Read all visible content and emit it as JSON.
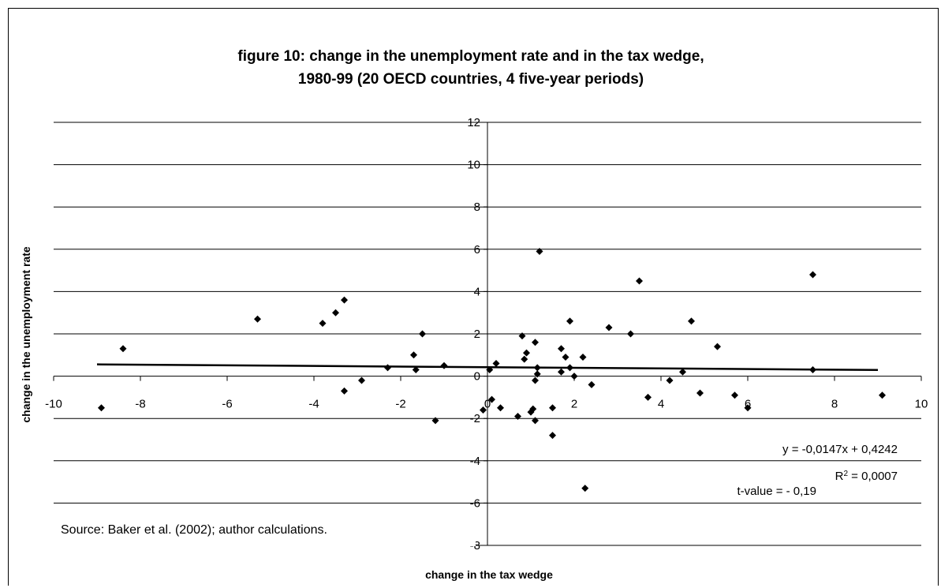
{
  "chart_data": {
    "type": "scatter",
    "title": "figure 10: change in the unemployment rate and in the tax wedge,",
    "subtitle": "1980-99 (20 OECD countries, 4 five-year periods)",
    "xlabel": "change in the tax wedge",
    "ylabel": "change in the unemployment rate",
    "xlim": [
      -10,
      10
    ],
    "ylim": [
      -8,
      12
    ],
    "x_ticks": [
      -10,
      -8,
      -6,
      -4,
      -2,
      0,
      2,
      4,
      6,
      8,
      10
    ],
    "y_ticks": [
      -8,
      -6,
      -4,
      -2,
      0,
      2,
      4,
      6,
      8,
      10,
      12
    ],
    "grid": "horizontal",
    "points": [
      {
        "x": -8.9,
        "y": -1.5
      },
      {
        "x": -8.4,
        "y": 1.3
      },
      {
        "x": -5.3,
        "y": 2.7
      },
      {
        "x": -3.8,
        "y": 2.5
      },
      {
        "x": -3.5,
        "y": 3.0
      },
      {
        "x": -3.3,
        "y": 3.6
      },
      {
        "x": -3.3,
        "y": -0.7
      },
      {
        "x": -2.9,
        "y": -0.2
      },
      {
        "x": -2.3,
        "y": 0.4
      },
      {
        "x": -1.7,
        "y": 1.0
      },
      {
        "x": -1.65,
        "y": 0.3
      },
      {
        "x": -1.5,
        "y": 2.0
      },
      {
        "x": -1.2,
        "y": -2.1
      },
      {
        "x": -1.0,
        "y": 0.5
      },
      {
        "x": -0.1,
        "y": -1.6
      },
      {
        "x": 0.05,
        "y": 0.3
      },
      {
        "x": 0.1,
        "y": -1.1
      },
      {
        "x": 0.2,
        "y": 0.6
      },
      {
        "x": 0.3,
        "y": -1.5
      },
      {
        "x": 0.7,
        "y": -1.9
      },
      {
        "x": 0.8,
        "y": 1.9
      },
      {
        "x": 0.85,
        "y": 0.8
      },
      {
        "x": 0.9,
        "y": 1.1
      },
      {
        "x": 1.0,
        "y": -1.7
      },
      {
        "x": 1.05,
        "y": -1.55
      },
      {
        "x": 1.1,
        "y": 1.6
      },
      {
        "x": 1.1,
        "y": -0.2
      },
      {
        "x": 1.1,
        "y": -2.1
      },
      {
        "x": 1.15,
        "y": 0.1
      },
      {
        "x": 1.15,
        "y": 0.4
      },
      {
        "x": 1.2,
        "y": 5.9
      },
      {
        "x": 1.5,
        "y": -1.5
      },
      {
        "x": 1.5,
        "y": -2.8
      },
      {
        "x": 1.7,
        "y": 1.3
      },
      {
        "x": 1.7,
        "y": 0.2
      },
      {
        "x": 1.8,
        "y": 0.9
      },
      {
        "x": 1.9,
        "y": 2.6
      },
      {
        "x": 1.9,
        "y": 0.4
      },
      {
        "x": 2.0,
        "y": 0.0
      },
      {
        "x": 2.2,
        "y": 0.9
      },
      {
        "x": 2.25,
        "y": -5.3
      },
      {
        "x": 2.4,
        "y": -0.4
      },
      {
        "x": 2.8,
        "y": 2.3
      },
      {
        "x": 3.3,
        "y": 2.0
      },
      {
        "x": 3.5,
        "y": 4.5
      },
      {
        "x": 3.7,
        "y": -1.0
      },
      {
        "x": 4.2,
        "y": -0.2
      },
      {
        "x": 4.5,
        "y": 0.2
      },
      {
        "x": 4.7,
        "y": 2.6
      },
      {
        "x": 4.9,
        "y": -0.8
      },
      {
        "x": 5.3,
        "y": 1.4
      },
      {
        "x": 5.7,
        "y": -0.9
      },
      {
        "x": 6.0,
        "y": -1.5
      },
      {
        "x": 7.5,
        "y": 4.8
      },
      {
        "x": 7.5,
        "y": 0.3
      },
      {
        "x": 9.1,
        "y": -0.9
      }
    ],
    "trendline": {
      "slope": -0.0147,
      "intercept": 0.4242,
      "x_range": [
        -9,
        9
      ]
    },
    "annotations": {
      "equation": "y = -0,0147x + 0,4242",
      "r_squared_label": "R",
      "r_squared_exp": "2",
      "r_squared_value": " = 0,0007",
      "t_value": "t-value = - 0,19"
    },
    "source": "Source: Baker et al. (2002); author calculations."
  }
}
